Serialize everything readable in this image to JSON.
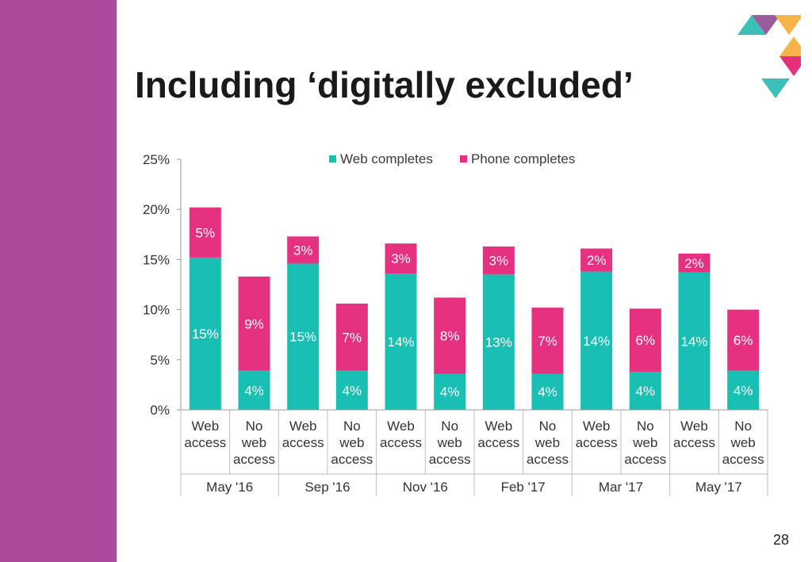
{
  "slide": {
    "title": "Including ‘digitally excluded’",
    "page_number": "28",
    "sidebar_color": "#ad4a9c"
  },
  "logo": {
    "colors": [
      "#3bbfb6",
      "#9b5c9c",
      "#f7b347",
      "#e5307e",
      "#3bbfb6"
    ]
  },
  "chart_data": {
    "type": "bar",
    "stacked": true,
    "title": "",
    "xlabel": "",
    "ylabel": "",
    "ylim": [
      0,
      25
    ],
    "yticks": [
      "0%",
      "5%",
      "10%",
      "15%",
      "20%",
      "25%"
    ],
    "legend_position": "top",
    "legend": [
      "Web completes",
      "Phone completes"
    ],
    "series": [
      {
        "name": "Web completes",
        "color": "#19bfb3",
        "values": [
          15.2,
          3.9,
          14.6,
          3.9,
          13.6,
          3.6,
          13.5,
          3.6,
          13.8,
          3.8,
          13.7,
          3.9
        ],
        "labels": [
          "15%",
          "4%",
          "15%",
          "4%",
          "14%",
          "4%",
          "13%",
          "4%",
          "14%",
          "4%",
          "14%",
          "4%"
        ]
      },
      {
        "name": "Phone completes",
        "color": "#e5317f",
        "values": [
          5.0,
          9.4,
          2.7,
          6.7,
          3.0,
          7.6,
          2.8,
          6.6,
          2.3,
          6.3,
          1.9,
          6.1
        ],
        "labels": [
          "5%",
          "9%",
          "3%",
          "7%",
          "3%",
          "8%",
          "3%",
          "7%",
          "2%",
          "6%",
          "2%",
          "6%"
        ]
      }
    ],
    "categories": [
      [
        "Web",
        "access"
      ],
      [
        "No",
        "web",
        "access"
      ],
      [
        "Web",
        "access"
      ],
      [
        "No",
        "web",
        "access"
      ],
      [
        "Web",
        "access"
      ],
      [
        "No",
        "web",
        "access"
      ],
      [
        "Web",
        "access"
      ],
      [
        "No",
        "web",
        "access"
      ],
      [
        "Web",
        "access"
      ],
      [
        "No",
        "web",
        "access"
      ],
      [
        "Web",
        "access"
      ],
      [
        "No",
        "web",
        "access"
      ]
    ],
    "groups": [
      "May '16",
      "Sep '16",
      "Nov '16",
      "Feb '17",
      "Mar '17",
      "May '17"
    ]
  }
}
